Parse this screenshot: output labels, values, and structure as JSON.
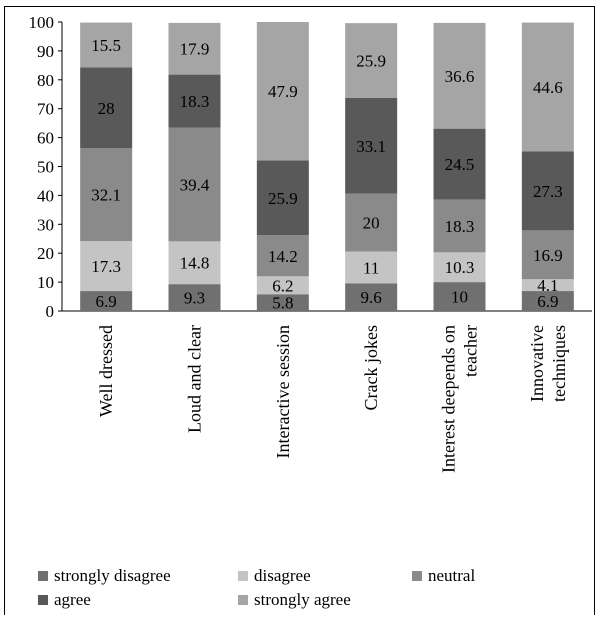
{
  "chart_data": {
    "type": "bar",
    "stacked": true,
    "categories": [
      "Well dressed",
      "Loud and clear",
      "Interactive session",
      "Crack jokes",
      "Interest deepends on teacher",
      "Innovative techniques"
    ],
    "series": [
      {
        "name": "strongly disagree",
        "color": "#707070",
        "label_color": "#000000",
        "values": [
          6.9,
          9.3,
          5.8,
          9.6,
          10,
          6.9
        ]
      },
      {
        "name": "disagree",
        "color": "#c4c4c4",
        "label_color": "#000000",
        "values": [
          17.3,
          14.8,
          6.2,
          11,
          10.3,
          4.1
        ]
      },
      {
        "name": "neutral",
        "color": "#8a8a8a",
        "label_color": "#000000",
        "values": [
          32.1,
          39.4,
          14.2,
          20,
          18.3,
          16.9
        ]
      },
      {
        "name": "agree",
        "color": "#595959",
        "label_color": "#000000",
        "values": [
          28,
          18.3,
          25.9,
          33.1,
          24.5,
          27.3
        ]
      },
      {
        "name": "strongly agree",
        "color": "#a5a5a5",
        "label_color": "#000000",
        "values": [
          15.5,
          17.9,
          47.9,
          25.9,
          36.6,
          44.6
        ]
      }
    ],
    "ylim": [
      0,
      100
    ],
    "yticks": [
      "0",
      "10",
      "20",
      "30",
      "40",
      "50",
      "60",
      "70",
      "80",
      "90",
      "100"
    ],
    "grid": false,
    "legend_position": "bottom"
  }
}
